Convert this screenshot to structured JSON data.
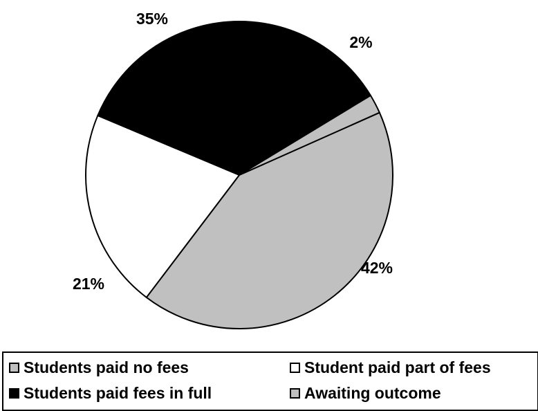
{
  "chart_data": {
    "type": "pie",
    "title": "",
    "slices": [
      {
        "name": "Students paid no fees",
        "value": 42,
        "label": "42%",
        "color": "#c0c0c0"
      },
      {
        "name": "Student paid part of fees",
        "value": 21,
        "label": "21%",
        "color": "#ffffff"
      },
      {
        "name": "Students paid fees in full",
        "value": 35,
        "label": "35%",
        "color": "#000000"
      },
      {
        "name": "Awaiting outcome",
        "value": 2,
        "label": "2%",
        "color": "#c0c0c0"
      }
    ],
    "legend": {
      "placement": "bottom",
      "entries": [
        "Students paid no fees",
        "Student paid part of fees",
        "Students paid fees in full",
        "Awaiting outcome"
      ]
    }
  }
}
